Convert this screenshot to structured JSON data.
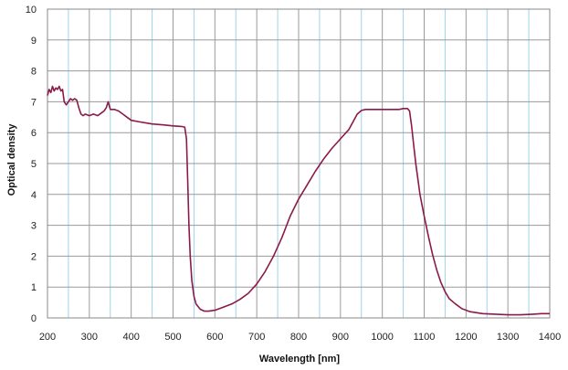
{
  "chart_data": {
    "type": "line",
    "title": "",
    "xlabel": "Wavelength [nm]",
    "ylabel": "Optical density",
    "xlim": [
      200,
      1400
    ],
    "ylim": [
      0,
      10
    ],
    "x_ticks": [
      "200",
      "300",
      "400",
      "500",
      "600",
      "700",
      "800",
      "900",
      "1000",
      "1100",
      "1200",
      "1300",
      "1400"
    ],
    "y_ticks": [
      "0",
      "1",
      "2",
      "3",
      "4",
      "5",
      "6",
      "7",
      "8",
      "9",
      "10"
    ],
    "x_minor_grid": [
      250,
      350,
      450,
      550,
      650,
      750,
      850,
      950,
      1050,
      1150,
      1250,
      1350
    ],
    "grid": true,
    "colors": {
      "line": "#8b1a4a",
      "major_grid": "#9a9a9a",
      "minor_grid": "#9fd3ec",
      "frame": "#888888"
    },
    "series": [
      {
        "points": [
          [
            200,
            7.2
          ],
          [
            204,
            7.4
          ],
          [
            208,
            7.3
          ],
          [
            212,
            7.5
          ],
          [
            216,
            7.35
          ],
          [
            220,
            7.45
          ],
          [
            224,
            7.4
          ],
          [
            228,
            7.5
          ],
          [
            232,
            7.35
          ],
          [
            236,
            7.4
          ],
          [
            240,
            7.0
          ],
          [
            245,
            6.9
          ],
          [
            250,
            7.0
          ],
          [
            255,
            7.1
          ],
          [
            260,
            7.05
          ],
          [
            265,
            7.1
          ],
          [
            270,
            7.05
          ],
          [
            275,
            6.8
          ],
          [
            280,
            6.6
          ],
          [
            285,
            6.55
          ],
          [
            290,
            6.6
          ],
          [
            300,
            6.55
          ],
          [
            310,
            6.6
          ],
          [
            320,
            6.55
          ],
          [
            330,
            6.65
          ],
          [
            335,
            6.7
          ],
          [
            340,
            6.8
          ],
          [
            345,
            7.0
          ],
          [
            350,
            6.75
          ],
          [
            360,
            6.75
          ],
          [
            370,
            6.7
          ],
          [
            380,
            6.6
          ],
          [
            390,
            6.5
          ],
          [
            400,
            6.4
          ],
          [
            420,
            6.35
          ],
          [
            450,
            6.28
          ],
          [
            480,
            6.25
          ],
          [
            500,
            6.22
          ],
          [
            520,
            6.2
          ],
          [
            528,
            6.18
          ],
          [
            532,
            5.8
          ],
          [
            535,
            4.5
          ],
          [
            538,
            3.0
          ],
          [
            541,
            2.0
          ],
          [
            545,
            1.2
          ],
          [
            550,
            0.7
          ],
          [
            555,
            0.45
          ],
          [
            565,
            0.28
          ],
          [
            575,
            0.22
          ],
          [
            585,
            0.22
          ],
          [
            600,
            0.25
          ],
          [
            620,
            0.35
          ],
          [
            640,
            0.45
          ],
          [
            660,
            0.6
          ],
          [
            680,
            0.8
          ],
          [
            700,
            1.1
          ],
          [
            720,
            1.5
          ],
          [
            740,
            2.0
          ],
          [
            760,
            2.6
          ],
          [
            780,
            3.3
          ],
          [
            800,
            3.85
          ],
          [
            820,
            4.3
          ],
          [
            840,
            4.75
          ],
          [
            860,
            5.15
          ],
          [
            880,
            5.5
          ],
          [
            900,
            5.8
          ],
          [
            920,
            6.1
          ],
          [
            940,
            6.6
          ],
          [
            950,
            6.72
          ],
          [
            960,
            6.75
          ],
          [
            980,
            6.75
          ],
          [
            1000,
            6.75
          ],
          [
            1020,
            6.75
          ],
          [
            1040,
            6.75
          ],
          [
            1050,
            6.78
          ],
          [
            1060,
            6.78
          ],
          [
            1065,
            6.7
          ],
          [
            1070,
            6.2
          ],
          [
            1075,
            5.6
          ],
          [
            1080,
            5.0
          ],
          [
            1085,
            4.5
          ],
          [
            1090,
            4.0
          ],
          [
            1100,
            3.3
          ],
          [
            1110,
            2.65
          ],
          [
            1120,
            2.05
          ],
          [
            1130,
            1.55
          ],
          [
            1140,
            1.15
          ],
          [
            1150,
            0.85
          ],
          [
            1160,
            0.62
          ],
          [
            1175,
            0.45
          ],
          [
            1190,
            0.3
          ],
          [
            1210,
            0.2
          ],
          [
            1240,
            0.14
          ],
          [
            1270,
            0.12
          ],
          [
            1300,
            0.1
          ],
          [
            1330,
            0.1
          ],
          [
            1360,
            0.12
          ],
          [
            1380,
            0.14
          ],
          [
            1400,
            0.14
          ]
        ]
      }
    ]
  }
}
